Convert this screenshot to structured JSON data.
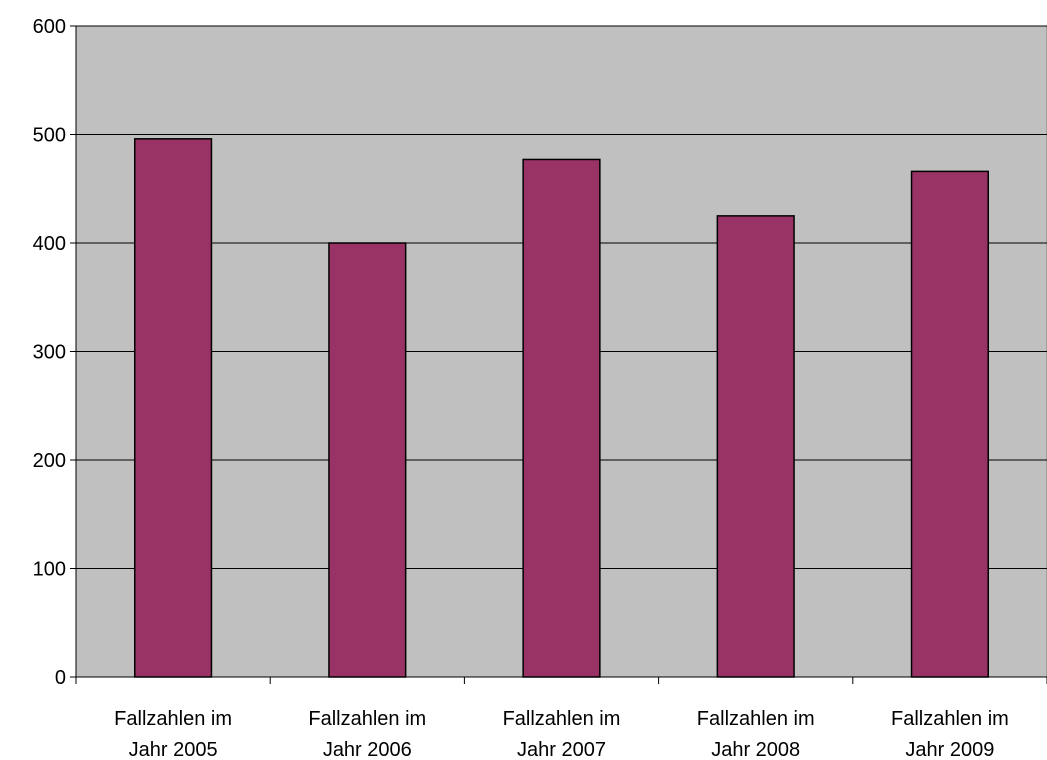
{
  "chart_data": {
    "type": "bar",
    "title": "",
    "xlabel": "",
    "ylabel": "",
    "categories": [
      [
        "Fallzahlen im",
        "Jahr 2005"
      ],
      [
        "Fallzahlen im",
        "Jahr 2006"
      ],
      [
        "Fallzahlen im",
        "Jahr 2007"
      ],
      [
        "Fallzahlen im",
        "Jahr 2008"
      ],
      [
        "Fallzahlen im",
        "Jahr 2009"
      ]
    ],
    "values": [
      496,
      400,
      477,
      425,
      466
    ],
    "ylim": [
      0,
      600
    ],
    "yticks": [
      0,
      100,
      200,
      300,
      400,
      500,
      600
    ],
    "grid": true,
    "legend": "none",
    "colors": {
      "bar_fill": "#993366",
      "bar_stroke": "#000000",
      "plot_background": "#c0c0c0",
      "gridline": "#000000"
    }
  }
}
